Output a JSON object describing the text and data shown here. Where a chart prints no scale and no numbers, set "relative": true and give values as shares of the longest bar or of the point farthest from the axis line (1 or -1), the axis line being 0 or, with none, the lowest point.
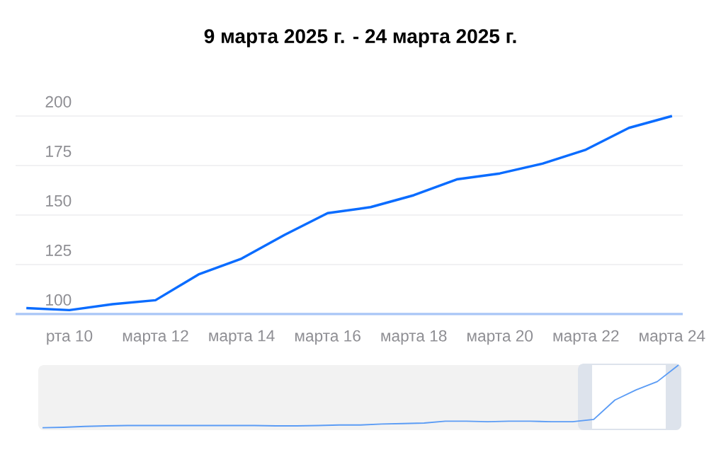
{
  "chart_data": [
    {
      "type": "line",
      "title": "9 марта 2025 г. - 24 марта 2025 г.",
      "color": "#0a6cff",
      "grid": "y",
      "categories": [
        null,
        "рта 10",
        null,
        "марта 12",
        null,
        "марта 14",
        null,
        "марта 16",
        null,
        "марта 18",
        null,
        "марта 20",
        null,
        "марта 22",
        null,
        "марта 24"
      ],
      "values": [
        103,
        102,
        105,
        107,
        120,
        128,
        140,
        151,
        154,
        160,
        168,
        171,
        176,
        183,
        194,
        200
      ],
      "ylim": [
        100,
        200
      ],
      "yticks": [
        100,
        125,
        150,
        175,
        200
      ]
    },
    {
      "type": "line",
      "relative": true,
      "color": "#5b9cf5",
      "categories": [
        null,
        null,
        null,
        null,
        null,
        null,
        null,
        null,
        null,
        null,
        null,
        null,
        null,
        null,
        null,
        null,
        null,
        null,
        null,
        null,
        null,
        null,
        null,
        null,
        null,
        null,
        null,
        null,
        null,
        null,
        null
      ],
      "values": [
        0.015,
        0.022,
        0.036,
        0.044,
        0.05,
        0.05,
        0.05,
        0.05,
        0.05,
        0.05,
        0.05,
        0.044,
        0.044,
        0.05,
        0.058,
        0.058,
        0.073,
        0.08,
        0.088,
        0.117,
        0.117,
        0.11,
        0.117,
        0.117,
        0.11,
        0.11,
        0.146,
        0.45,
        0.61,
        0.74,
        1.0
      ]
    }
  ]
}
